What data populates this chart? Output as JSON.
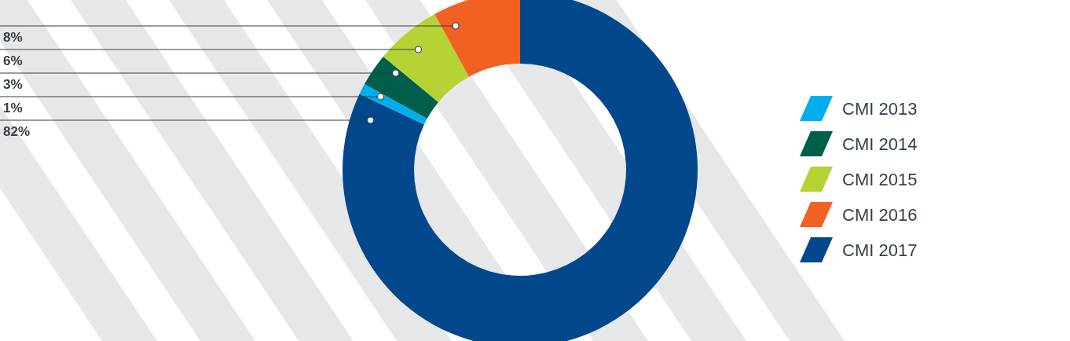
{
  "chart_data": {
    "type": "donut",
    "categories": [
      "CMI 2013",
      "CMI 2014",
      "CMI 2015",
      "CMI 2016",
      "CMI 2017"
    ],
    "values": [
      1,
      3,
      6,
      8,
      82
    ],
    "colors": [
      "#00aeef",
      "#005f4b",
      "#b5d334",
      "#f26122",
      "#03478c"
    ],
    "value_labels": [
      "1%",
      "3%",
      "6%",
      "8%",
      "82%"
    ],
    "legend": "right"
  }
}
